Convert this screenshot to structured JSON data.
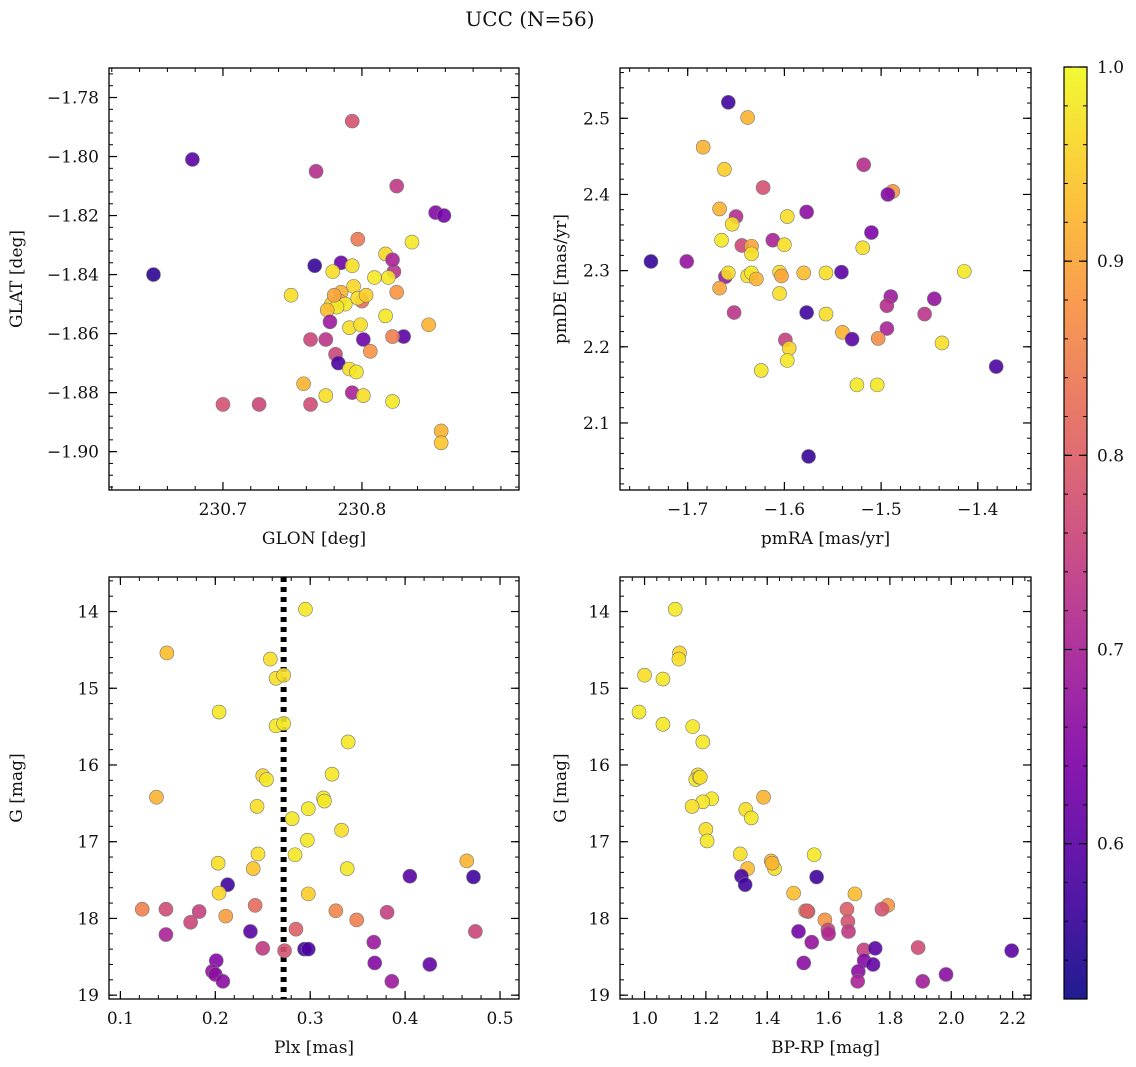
{
  "figure": {
    "title": "UCC (N=56)",
    "cmap": "plasma",
    "colors": {
      "background": "#ffffff",
      "axes": "#000000",
      "marker_edge": "#777777",
      "vline": "#000000"
    }
  },
  "colorbar": {
    "vmin": 0.52,
    "vmax": 1.0,
    "ticks": [
      0.6,
      0.7,
      0.8,
      0.9,
      1.0
    ],
    "tick_labels": [
      "0.6",
      "0.7",
      "0.8",
      "0.9",
      "1.0"
    ]
  },
  "chart_data": [
    {
      "type": "scatter",
      "xlabel": "GLON [deg]",
      "ylabel": "GLAT [deg]",
      "xlim": [
        230.618,
        230.913
      ],
      "ylim": [
        -1.913,
        -1.77
      ],
      "x_ticks": [
        230.7,
        230.8
      ],
      "x_tick_labels": [
        "230.7",
        "230.8"
      ],
      "y_ticks": [
        -1.78,
        -1.8,
        -1.82,
        -1.84,
        -1.86,
        -1.88,
        -1.9
      ],
      "y_tick_labels": [
        "−1.78",
        "−1.80",
        "−1.82",
        "−1.84",
        "−1.86",
        "−1.88",
        "−1.90"
      ],
      "y_inverted": false,
      "points": [
        [
          230.793,
          -1.788,
          0.78
        ],
        [
          230.678,
          -1.801,
          0.6
        ],
        [
          230.767,
          -1.805,
          0.72
        ],
        [
          230.825,
          -1.81,
          0.74
        ],
        [
          230.853,
          -1.819,
          0.65
        ],
        [
          230.859,
          -1.82,
          0.63
        ],
        [
          230.65,
          -1.84,
          0.55
        ],
        [
          230.766,
          -1.837,
          0.56
        ],
        [
          230.785,
          -1.836,
          0.62
        ],
        [
          230.797,
          -1.828,
          0.84
        ],
        [
          230.793,
          -1.837,
          0.97
        ],
        [
          230.836,
          -1.829,
          0.98
        ],
        [
          230.817,
          -1.833,
          0.96
        ],
        [
          230.823,
          -1.839,
          0.73
        ],
        [
          230.825,
          -1.846,
          0.88
        ],
        [
          230.819,
          -1.841,
          0.98
        ],
        [
          230.809,
          -1.841,
          0.98
        ],
        [
          230.822,
          -1.835,
          0.7
        ],
        [
          230.749,
          -1.847,
          0.97
        ],
        [
          230.779,
          -1.839,
          0.97
        ],
        [
          230.785,
          -1.846,
          0.92
        ],
        [
          230.794,
          -1.844,
          0.96
        ],
        [
          230.784,
          -1.849,
          0.9
        ],
        [
          230.8,
          -1.849,
          0.82
        ],
        [
          230.778,
          -1.85,
          0.96
        ],
        [
          230.788,
          -1.85,
          0.98
        ],
        [
          230.797,
          -1.848,
          0.97
        ],
        [
          230.782,
          -1.851,
          0.98
        ],
        [
          230.775,
          -1.852,
          0.93
        ],
        [
          230.791,
          -1.858,
          0.97
        ],
        [
          230.777,
          -1.856,
          0.68
        ],
        [
          230.799,
          -1.857,
          0.97
        ],
        [
          230.848,
          -1.857,
          0.92
        ],
        [
          230.817,
          -1.854,
          0.98
        ],
        [
          230.83,
          -1.861,
          0.6
        ],
        [
          230.822,
          -1.861,
          0.85
        ],
        [
          230.763,
          -1.862,
          0.76
        ],
        [
          230.774,
          -1.862,
          0.73
        ],
        [
          230.801,
          -1.862,
          0.62
        ],
        [
          230.806,
          -1.866,
          0.88
        ],
        [
          230.781,
          -1.867,
          0.76
        ],
        [
          230.783,
          -1.87,
          0.58
        ],
        [
          230.791,
          -1.872,
          0.97
        ],
        [
          230.796,
          -1.873,
          0.98
        ],
        [
          230.758,
          -1.877,
          0.92
        ],
        [
          230.774,
          -1.881,
          0.97
        ],
        [
          230.793,
          -1.88,
          0.7
        ],
        [
          230.801,
          -1.881,
          0.97
        ],
        [
          230.822,
          -1.883,
          0.98
        ],
        [
          230.7,
          -1.884,
          0.78
        ],
        [
          230.726,
          -1.884,
          0.76
        ],
        [
          230.763,
          -1.884,
          0.77
        ],
        [
          230.857,
          -1.893,
          0.92
        ],
        [
          230.857,
          -1.897,
          0.94
        ],
        [
          230.78,
          -1.847,
          0.9
        ],
        [
          230.803,
          -1.847,
          0.95
        ]
      ]
    },
    {
      "type": "scatter",
      "xlabel": "pmRA [mas/yr]",
      "ylabel": "pmDE [mas/yr]",
      "xlim": [
        -1.77,
        -1.345
      ],
      "ylim": [
        2.012,
        2.566
      ],
      "x_ticks": [
        -1.7,
        -1.6,
        -1.5,
        -1.4
      ],
      "x_tick_labels": [
        "−1.7",
        "−1.6",
        "−1.5",
        "−1.4"
      ],
      "y_ticks": [
        2.1,
        2.2,
        2.3,
        2.4,
        2.5
      ],
      "y_tick_labels": [
        "2.1",
        "2.2",
        "2.3",
        "2.4",
        "2.5"
      ],
      "y_inverted": false,
      "points": [
        [
          -1.658,
          2.521,
          0.57
        ],
        [
          -1.638,
          2.501,
          0.92
        ],
        [
          -1.684,
          2.462,
          0.92
        ],
        [
          -1.518,
          2.439,
          0.72
        ],
        [
          -1.622,
          2.409,
          0.78
        ],
        [
          -1.662,
          2.433,
          0.95
        ],
        [
          -1.488,
          2.404,
          0.88
        ],
        [
          -1.493,
          2.4,
          0.65
        ],
        [
          -1.667,
          2.381,
          0.92
        ],
        [
          -1.65,
          2.371,
          0.72
        ],
        [
          -1.597,
          2.371,
          0.97
        ],
        [
          -1.577,
          2.377,
          0.66
        ],
        [
          -1.654,
          2.361,
          0.97
        ],
        [
          -1.51,
          2.35,
          0.64
        ],
        [
          -1.612,
          2.34,
          0.7
        ],
        [
          -1.665,
          2.34,
          0.98
        ],
        [
          -1.644,
          2.333,
          0.76
        ],
        [
          -1.634,
          2.332,
          0.9
        ],
        [
          -1.6,
          2.334,
          0.97
        ],
        [
          -1.519,
          2.33,
          0.97
        ],
        [
          -1.634,
          2.322,
          0.97
        ],
        [
          -1.738,
          2.312,
          0.56
        ],
        [
          -1.701,
          2.312,
          0.67
        ],
        [
          -1.661,
          2.292,
          0.68
        ],
        [
          -1.658,
          2.297,
          0.97
        ],
        [
          -1.638,
          2.293,
          0.97
        ],
        [
          -1.634,
          2.297,
          0.98
        ],
        [
          -1.605,
          2.298,
          0.97
        ],
        [
          -1.603,
          2.293,
          0.9
        ],
        [
          -1.58,
          2.297,
          0.93
        ],
        [
          -1.557,
          2.297,
          0.97
        ],
        [
          -1.541,
          2.298,
          0.6
        ],
        [
          -1.414,
          2.299,
          0.98
        ],
        [
          -1.629,
          2.289,
          0.92
        ],
        [
          -1.667,
          2.277,
          0.9
        ],
        [
          -1.605,
          2.27,
          0.97
        ],
        [
          -1.49,
          2.266,
          0.68
        ],
        [
          -1.445,
          2.263,
          0.67
        ],
        [
          -1.494,
          2.254,
          0.72
        ],
        [
          -1.652,
          2.245,
          0.73
        ],
        [
          -1.577,
          2.245,
          0.57
        ],
        [
          -1.557,
          2.243,
          0.97
        ],
        [
          -1.455,
          2.243,
          0.73
        ],
        [
          -1.494,
          2.224,
          0.7
        ],
        [
          -1.54,
          2.219,
          0.92
        ],
        [
          -1.599,
          2.209,
          0.75
        ],
        [
          -1.53,
          2.21,
          0.6
        ],
        [
          -1.503,
          2.211,
          0.87
        ],
        [
          -1.437,
          2.205,
          0.97
        ],
        [
          -1.595,
          2.198,
          0.96
        ],
        [
          -1.597,
          2.182,
          0.98
        ],
        [
          -1.624,
          2.169,
          0.98
        ],
        [
          -1.381,
          2.174,
          0.58
        ],
        [
          -1.525,
          2.15,
          0.98
        ],
        [
          -1.504,
          2.15,
          0.98
        ],
        [
          -1.575,
          2.056,
          0.56
        ]
      ]
    },
    {
      "type": "scatter",
      "xlabel": "Plx [mas]",
      "ylabel": "G [mag]",
      "xlim": [
        0.088,
        0.52
      ],
      "ylim": [
        13.55,
        19.05
      ],
      "x_ticks": [
        0.1,
        0.2,
        0.3,
        0.4,
        0.5
      ],
      "x_tick_labels": [
        "0.1",
        "0.2",
        "0.3",
        "0.4",
        "0.5"
      ],
      "y_ticks": [
        14,
        15,
        16,
        17,
        18,
        19
      ],
      "y_tick_labels": [
        "14",
        "15",
        "16",
        "17",
        "18",
        "19"
      ],
      "y_inverted": true,
      "vline_x": 0.272,
      "points": [
        [
          0.295,
          13.97,
          0.98
        ],
        [
          0.149,
          14.54,
          0.93
        ],
        [
          0.258,
          14.62,
          0.97
        ],
        [
          0.264,
          14.87,
          0.97
        ],
        [
          0.272,
          14.83,
          0.97
        ],
        [
          0.204,
          15.31,
          0.98
        ],
        [
          0.264,
          15.49,
          0.98
        ],
        [
          0.272,
          15.46,
          0.98
        ],
        [
          0.34,
          15.7,
          0.98
        ],
        [
          0.25,
          16.14,
          0.96
        ],
        [
          0.254,
          16.19,
          0.98
        ],
        [
          0.323,
          16.12,
          0.98
        ],
        [
          0.138,
          16.42,
          0.92
        ],
        [
          0.314,
          16.43,
          0.98
        ],
        [
          0.315,
          16.47,
          0.98
        ],
        [
          0.244,
          16.54,
          0.97
        ],
        [
          0.298,
          16.57,
          0.98
        ],
        [
          0.281,
          16.7,
          0.98
        ],
        [
          0.333,
          16.85,
          0.97
        ],
        [
          0.297,
          16.98,
          0.98
        ],
        [
          0.245,
          17.16,
          0.97
        ],
        [
          0.284,
          17.17,
          0.98
        ],
        [
          0.203,
          17.28,
          0.97
        ],
        [
          0.339,
          17.35,
          0.98
        ],
        [
          0.24,
          17.35,
          0.94
        ],
        [
          0.465,
          17.25,
          0.92
        ],
        [
          0.405,
          17.45,
          0.6
        ],
        [
          0.472,
          17.46,
          0.57
        ],
        [
          0.213,
          17.56,
          0.57
        ],
        [
          0.204,
          17.67,
          0.96
        ],
        [
          0.298,
          17.68,
          0.95
        ],
        [
          0.123,
          17.88,
          0.85
        ],
        [
          0.148,
          17.88,
          0.77
        ],
        [
          0.183,
          17.91,
          0.75
        ],
        [
          0.242,
          17.83,
          0.82
        ],
        [
          0.327,
          17.9,
          0.86
        ],
        [
          0.211,
          17.97,
          0.89
        ],
        [
          0.381,
          17.92,
          0.75
        ],
        [
          0.174,
          18.05,
          0.76
        ],
        [
          0.349,
          18.02,
          0.85
        ],
        [
          0.285,
          18.14,
          0.8
        ],
        [
          0.148,
          18.21,
          0.7
        ],
        [
          0.237,
          18.17,
          0.6
        ],
        [
          0.474,
          18.17,
          0.76
        ],
        [
          0.367,
          18.31,
          0.68
        ],
        [
          0.25,
          18.39,
          0.74
        ],
        [
          0.294,
          18.4,
          0.57
        ],
        [
          0.298,
          18.4,
          0.58
        ],
        [
          0.273,
          18.42,
          0.78
        ],
        [
          0.201,
          18.55,
          0.65
        ],
        [
          0.368,
          18.58,
          0.65
        ],
        [
          0.426,
          18.6,
          0.61
        ],
        [
          0.197,
          18.69,
          0.67
        ],
        [
          0.2,
          18.73,
          0.66
        ],
        [
          0.208,
          18.82,
          0.66
        ],
        [
          0.386,
          18.82,
          0.68
        ]
      ]
    },
    {
      "type": "scatter",
      "xlabel": "BP-RP [mag]",
      "ylabel": "G [mag]",
      "xlim": [
        0.92,
        2.26
      ],
      "ylim": [
        13.55,
        19.05
      ],
      "x_ticks": [
        1.0,
        1.2,
        1.4,
        1.6,
        1.8,
        2.0,
        2.2
      ],
      "x_tick_labels": [
        "1.0",
        "1.2",
        "1.4",
        "1.6",
        "1.8",
        "2.0",
        "2.2"
      ],
      "y_ticks": [
        14,
        15,
        16,
        17,
        18,
        19
      ],
      "y_tick_labels": [
        "14",
        "15",
        "16",
        "17",
        "18",
        "19"
      ],
      "y_inverted": true,
      "points": [
        [
          1.1,
          13.97,
          0.98
        ],
        [
          1.114,
          14.54,
          0.96
        ],
        [
          1.112,
          14.62,
          0.97
        ],
        [
          1.0,
          14.83,
          0.97
        ],
        [
          1.06,
          14.88,
          0.98
        ],
        [
          0.982,
          15.31,
          0.98
        ],
        [
          1.06,
          15.47,
          0.98
        ],
        [
          1.157,
          15.5,
          0.98
        ],
        [
          1.19,
          15.7,
          0.98
        ],
        [
          1.174,
          16.13,
          0.97
        ],
        [
          1.167,
          16.19,
          0.98
        ],
        [
          1.179,
          16.16,
          0.98
        ],
        [
          1.388,
          16.42,
          0.92
        ],
        [
          1.219,
          16.44,
          0.98
        ],
        [
          1.19,
          16.48,
          0.98
        ],
        [
          1.155,
          16.54,
          0.97
        ],
        [
          1.33,
          16.58,
          0.97
        ],
        [
          1.348,
          16.69,
          0.98
        ],
        [
          1.2,
          16.84,
          0.97
        ],
        [
          1.204,
          16.99,
          0.98
        ],
        [
          1.312,
          17.16,
          0.97
        ],
        [
          1.553,
          17.17,
          0.98
        ],
        [
          1.413,
          17.25,
          0.93
        ],
        [
          1.424,
          17.35,
          0.97
        ],
        [
          1.336,
          17.35,
          0.93
        ],
        [
          1.316,
          17.45,
          0.58
        ],
        [
          1.561,
          17.46,
          0.57
        ],
        [
          1.328,
          17.56,
          0.57
        ],
        [
          1.486,
          17.67,
          0.93
        ],
        [
          1.686,
          17.68,
          0.93
        ],
        [
          1.793,
          17.83,
          0.88
        ],
        [
          1.525,
          17.9,
          0.86
        ],
        [
          1.533,
          17.91,
          0.8
        ],
        [
          1.66,
          17.88,
          0.8
        ],
        [
          1.774,
          17.88,
          0.78
        ],
        [
          1.588,
          18.02,
          0.88
        ],
        [
          1.663,
          18.04,
          0.78
        ],
        [
          1.598,
          18.15,
          0.76
        ],
        [
          1.665,
          18.17,
          0.74
        ],
        [
          1.6,
          18.2,
          0.71
        ],
        [
          1.502,
          18.17,
          0.63
        ],
        [
          1.545,
          18.31,
          0.67
        ],
        [
          1.715,
          18.41,
          0.75
        ],
        [
          1.752,
          18.39,
          0.6
        ],
        [
          1.892,
          18.38,
          0.77
        ],
        [
          2.197,
          18.42,
          0.6
        ],
        [
          1.716,
          18.55,
          0.65
        ],
        [
          1.519,
          18.58,
          0.66
        ],
        [
          1.745,
          18.6,
          0.61
        ],
        [
          1.697,
          18.69,
          0.66
        ],
        [
          1.983,
          18.73,
          0.66
        ],
        [
          1.695,
          18.82,
          0.7
        ],
        [
          1.907,
          18.82,
          0.69
        ],
        [
          1.53,
          17.9,
          0.8
        ],
        [
          1.416,
          17.28,
          0.92
        ],
        [
          1.182,
          16.16,
          0.97
        ]
      ]
    }
  ]
}
